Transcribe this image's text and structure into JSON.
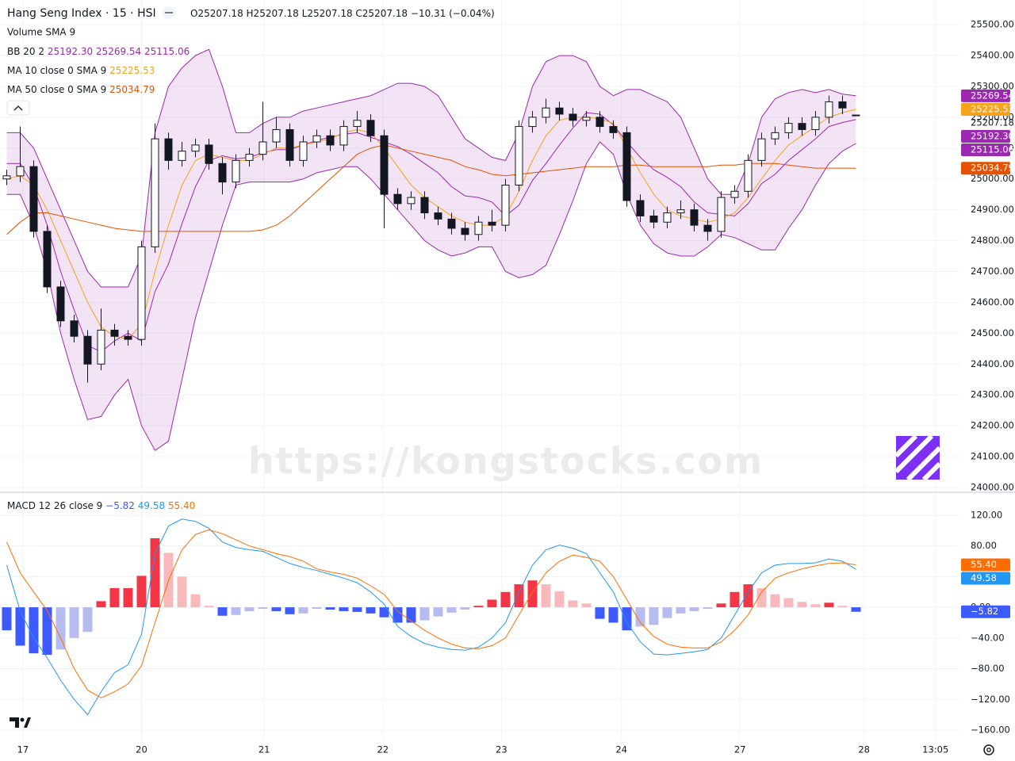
{
  "header": {
    "title": "Hang Seng Index · 15 · HSI",
    "ohlc": [
      "O25207.18",
      "H25207.18",
      "L25207.18",
      "C25207.18"
    ],
    "change": "−10.31 (−0.04%)"
  },
  "watermark": "https://kongstocks.com",
  "chart_data": [
    {
      "type": "candlestick",
      "volume_legend": "Volume SMA 9",
      "grid": true,
      "up_color": "#ffffff",
      "down_color": "#131722",
      "x": [
        0,
        1,
        2,
        3,
        4,
        5,
        6,
        7,
        8,
        9,
        10,
        11,
        12,
        13,
        14,
        15,
        16,
        17,
        18,
        19,
        20,
        21,
        22,
        23,
        24,
        25,
        26,
        27,
        28,
        29,
        30,
        31,
        32,
        33,
        34,
        35,
        36,
        37,
        38,
        39,
        40,
        41,
        42,
        43,
        44,
        45,
        46,
        47,
        48,
        49,
        50,
        51,
        52,
        53,
        54,
        55,
        56,
        57,
        58,
        59,
        60,
        61,
        62,
        63
      ],
      "xlim": [
        -0.5,
        70.68
      ],
      "xticks": [
        {
          "value": 1.2,
          "label": "17"
        },
        {
          "value": 10,
          "label": "20"
        },
        {
          "value": 19.1,
          "label": "21"
        },
        {
          "value": 27.9,
          "label": "22"
        },
        {
          "value": 36.7,
          "label": "23"
        },
        {
          "value": 45.6,
          "label": "24"
        },
        {
          "value": 54.4,
          "label": "27"
        },
        {
          "value": 63.6,
          "label": "28"
        },
        {
          "value": 68.9,
          "label": "13:05"
        }
      ],
      "ylim": [
        23987,
        25580
      ],
      "yticks": [
        {
          "value": 24000,
          "label": "24000.00"
        },
        {
          "value": 24100,
          "label": "24100.00"
        },
        {
          "value": 24200,
          "label": "24200.00"
        },
        {
          "value": 24300,
          "label": "24300.00"
        },
        {
          "value": 24400,
          "label": "24400.00"
        },
        {
          "value": 24500,
          "label": "24500.00"
        },
        {
          "value": 24600,
          "label": "24600.00"
        },
        {
          "value": 24700,
          "label": "24700.00"
        },
        {
          "value": 24800,
          "label": "24800.00"
        },
        {
          "value": 24900,
          "label": "24900.00"
        },
        {
          "value": 25000,
          "label": "25000.00"
        },
        {
          "value": 25100,
          "label": "25100.00"
        },
        {
          "value": 25200,
          "label": "25200.00"
        },
        {
          "value": 25300,
          "label": "25300.00"
        },
        {
          "value": 25400,
          "label": "25400.00"
        },
        {
          "value": 25500,
          "label": "25500.00"
        }
      ],
      "open": [
        25000,
        25010,
        25040,
        24830,
        24650,
        24540,
        24490,
        24400,
        24510,
        24490,
        24480,
        24780,
        25130,
        25060,
        25090,
        25110,
        25050,
        24990,
        25060,
        25080,
        25120,
        25160,
        25060,
        25120,
        25140,
        25110,
        25170,
        25190,
        25140,
        24950,
        24920,
        24940,
        24890,
        24870,
        24840,
        24820,
        24860,
        24850,
        24980,
        25170,
        25200,
        25230,
        25210,
        25190,
        25200,
        25170,
        25150,
        24930,
        24880,
        24860,
        24890,
        24900,
        24850,
        24830,
        24940,
        24960,
        25060,
        25130,
        25150,
        25180,
        25160,
        25200,
        25250,
        25207.18
      ],
      "high": [
        25030,
        25170,
        25060,
        24850,
        24670,
        24560,
        24510,
        24580,
        24530,
        24510,
        24800,
        25180,
        25150,
        25120,
        25130,
        25130,
        25070,
        25080,
        25100,
        25250,
        25200,
        25180,
        25140,
        25160,
        25160,
        25190,
        25220,
        25210,
        25160,
        24970,
        24960,
        24960,
        24910,
        24890,
        24860,
        24880,
        24900,
        25000,
        25190,
        25220,
        25260,
        25250,
        25230,
        25220,
        25220,
        25190,
        25170,
        24950,
        24900,
        24910,
        24930,
        24920,
        24870,
        24960,
        24980,
        25080,
        25150,
        25170,
        25200,
        25200,
        25220,
        25270,
        25270,
        25207.18
      ],
      "low": [
        24980,
        24990,
        24810,
        24630,
        24520,
        24470,
        24340,
        24380,
        24460,
        24460,
        24460,
        24760,
        25030,
        25040,
        25070,
        25030,
        24950,
        24970,
        25040,
        25060,
        25100,
        25040,
        25040,
        25100,
        25090,
        25090,
        25150,
        25120,
        24840,
        24900,
        24900,
        24870,
        24850,
        24820,
        24800,
        24800,
        24830,
        24830,
        24960,
        25150,
        25180,
        25190,
        25170,
        25170,
        25150,
        25130,
        24910,
        24860,
        24840,
        24840,
        24870,
        24830,
        24800,
        24810,
        24920,
        24940,
        25040,
        25110,
        25130,
        25140,
        25140,
        25180,
        25210,
        25207.18
      ],
      "close": [
        25010,
        25040,
        24830,
        24650,
        24540,
        24490,
        24400,
        24510,
        24490,
        24480,
        24780,
        25130,
        25060,
        25090,
        25110,
        25050,
        24990,
        25060,
        25080,
        25120,
        25160,
        25060,
        25120,
        25140,
        25110,
        25170,
        25190,
        25140,
        24950,
        24920,
        24940,
        24890,
        24870,
        24840,
        24820,
        24860,
        24850,
        24980,
        25170,
        25200,
        25230,
        25210,
        25190,
        25200,
        25170,
        25150,
        24930,
        24880,
        24860,
        24890,
        24900,
        24850,
        24830,
        24940,
        24960,
        25060,
        25130,
        25150,
        25180,
        25160,
        25200,
        25250,
        25230,
        25207.18
      ],
      "indicators": [
        {
          "name": "BB 20 2",
          "color": "#9c27b0",
          "fill": "rgba(186,104,200,0.18)",
          "basis_label": "25192.30",
          "upper_label": "25269.54",
          "lower_label": "25115.06",
          "basis": [
            25050,
            25050,
            24975,
            24850,
            24700,
            24575,
            24460,
            24440,
            24475,
            24500,
            24475,
            24635,
            24725,
            24855,
            24975,
            25060,
            25075,
            25065,
            25070,
            25085,
            25095,
            25095,
            25110,
            25125,
            25135,
            25145,
            25150,
            25135,
            25120,
            25105,
            25080,
            25050,
            25020,
            24975,
            24945,
            24940,
            24925,
            24880,
            24915,
            24995,
            25050,
            25110,
            25165,
            25215,
            25210,
            25175,
            25120,
            25070,
            25030,
            25005,
            24975,
            24925,
            24890,
            24885,
            24880,
            24920,
            24985,
            25015,
            25060,
            25095,
            25130,
            25170,
            25183,
            25192.3
          ],
          "upper": [
            25150,
            25150,
            25100,
            25000,
            24900,
            24800,
            24700,
            24650,
            24650,
            24650,
            24750,
            25150,
            25300,
            25360,
            25400,
            25420,
            25300,
            25150,
            25150,
            25180,
            25200,
            25200,
            25220,
            25230,
            25240,
            25250,
            25260,
            25270,
            25290,
            25310,
            25310,
            25300,
            25270,
            25200,
            25130,
            25100,
            25070,
            25060,
            25150,
            25300,
            25380,
            25400,
            25400,
            25380,
            25300,
            25270,
            25290,
            25290,
            25270,
            25250,
            25200,
            25100,
            25000,
            24950,
            24950,
            25050,
            25200,
            25260,
            25280,
            25290,
            25280,
            25290,
            25275,
            25269.54
          ],
          "lower": [
            24950,
            24950,
            24850,
            24700,
            24500,
            24350,
            24220,
            24230,
            24300,
            24350,
            24200,
            24120,
            24150,
            24350,
            24550,
            24700,
            24850,
            24980,
            24990,
            24990,
            24990,
            24990,
            25000,
            25020,
            25030,
            25040,
            25040,
            25000,
            24950,
            24900,
            24850,
            24800,
            24770,
            24750,
            24760,
            24780,
            24780,
            24700,
            24680,
            24690,
            24720,
            24820,
            24930,
            25050,
            25120,
            25080,
            24950,
            24850,
            24790,
            24760,
            24750,
            24750,
            24780,
            24820,
            24810,
            24790,
            24770,
            24770,
            24840,
            24900,
            24980,
            25050,
            25090,
            25115.06
          ]
        },
        {
          "name": "MA 10 close 0 SMA 9",
          "color": "#f7a21b",
          "last_label": "25225.53",
          "values": [
            25000,
            25010,
            24980,
            24900,
            24800,
            24700,
            24600,
            24520,
            24490,
            24480,
            24530,
            24700,
            24850,
            24980,
            25060,
            25080,
            25070,
            25060,
            25060,
            25080,
            25100,
            25100,
            25110,
            25120,
            25130,
            25150,
            25160,
            25150,
            25100,
            25040,
            24980,
            24940,
            24910,
            24880,
            24860,
            24850,
            24850,
            24880,
            24960,
            25060,
            25140,
            25190,
            25200,
            25200,
            25195,
            25180,
            25100,
            25020,
            24950,
            24900,
            24880,
            24870,
            24860,
            24870,
            24890,
            24940,
            25000,
            25060,
            25110,
            25140,
            25170,
            25200,
            25215,
            25225.53
          ]
        },
        {
          "name": "MA 50 close 0 SMA 9",
          "color": "#e65100",
          "last_label": "25034.79",
          "values": [
            24820,
            24860,
            24890,
            24890,
            24880,
            24870,
            24860,
            24850,
            24840,
            24835,
            24830,
            24830,
            24830,
            24830,
            24830,
            24830,
            24830,
            24830,
            24830,
            24835,
            24850,
            24880,
            24920,
            24960,
            25000,
            25040,
            25080,
            25100,
            25110,
            25100,
            25090,
            25080,
            25070,
            25060,
            25040,
            25030,
            25015,
            25010,
            25015,
            25020,
            25025,
            25030,
            25035,
            25040,
            25040,
            25040,
            25045,
            25045,
            25040,
            25040,
            25040,
            25040,
            25040,
            25045,
            25045,
            25050,
            25050,
            25050,
            25045,
            25040,
            25035,
            25035,
            25035,
            25034.79
          ]
        }
      ]
    },
    {
      "type": "macd",
      "title": "MACD 12 26 close 9",
      "grid": true,
      "ylim": [
        -174.5,
        148.9
      ],
      "yticks": [
        {
          "value": 120,
          "label": "120.00"
        },
        {
          "value": 80,
          "label": "80.00"
        },
        {
          "value": 40,
          "label": "40.00"
        },
        {
          "value": 0,
          "label": "0.00"
        },
        {
          "value": -40,
          "label": "−40.00"
        },
        {
          "value": -80,
          "label": "−80.00"
        },
        {
          "value": -120,
          "label": "−120.00"
        },
        {
          "value": -160,
          "label": "−160.00"
        }
      ],
      "histogram": {
        "last_label": "−5.82",
        "colors": {
          "pos_up": "#f23645",
          "pos_down": "#f8b9bd",
          "neg_down": "#3d5afe",
          "neg_up": "#b6bcef"
        },
        "values": [
          -30,
          -50,
          -60,
          -62,
          -55,
          -40,
          -32,
          8,
          25,
          25,
          41,
          90,
          71,
          40,
          17,
          2,
          -11,
          -10,
          -5,
          -2,
          -5,
          -9,
          -8,
          -2,
          -3,
          -5,
          -6,
          -8,
          -13,
          -20,
          -20,
          -17,
          -12,
          -7,
          -3,
          2,
          10,
          20,
          30,
          35,
          30,
          21,
          9,
          5,
          -15,
          -20,
          -30,
          -25,
          -23,
          -14,
          -8,
          -5,
          -2,
          5,
          20,
          30,
          25,
          17,
          12,
          7,
          4,
          6,
          2,
          -5.82
        ]
      },
      "macd": {
        "color": "#2196f3",
        "last_label": "49.58",
        "values": [
          55,
          -5,
          -40,
          -66,
          -95,
          -120,
          -140,
          -110,
          -85,
          -75,
          -35,
          70,
          106,
          115,
          112,
          103,
          85,
          78,
          75,
          73,
          65,
          57,
          52,
          48,
          43,
          38,
          32,
          20,
          4,
          -25,
          -38,
          -47,
          -52,
          -55,
          -56,
          -52,
          -40,
          -20,
          20,
          55,
          75,
          81,
          77,
          70,
          45,
          20,
          -20,
          -45,
          -61,
          -62,
          -60,
          -58,
          -55,
          -40,
          -10,
          20,
          45,
          55,
          57,
          57,
          58,
          63,
          60,
          49.58
        ]
      },
      "signal": {
        "color": "#ff6d00",
        "last_label": "55.40",
        "values": [
          85,
          45,
          20,
          -4,
          -40,
          -80,
          -108,
          -118,
          -110,
          -100,
          -76,
          -20,
          35,
          75,
          95,
          101,
          96,
          88,
          80,
          75,
          70,
          66,
          60,
          50,
          46,
          43,
          38,
          28,
          17,
          -5,
          -18,
          -30,
          -40,
          -48,
          -53,
          -54,
          -50,
          -40,
          -10,
          20,
          45,
          60,
          68,
          65,
          60,
          40,
          10,
          -20,
          -38,
          -48,
          -52,
          -53,
          -53,
          -45,
          -30,
          -10,
          20,
          38,
          45,
          50,
          54,
          57,
          58,
          55.4
        ]
      }
    }
  ]
}
